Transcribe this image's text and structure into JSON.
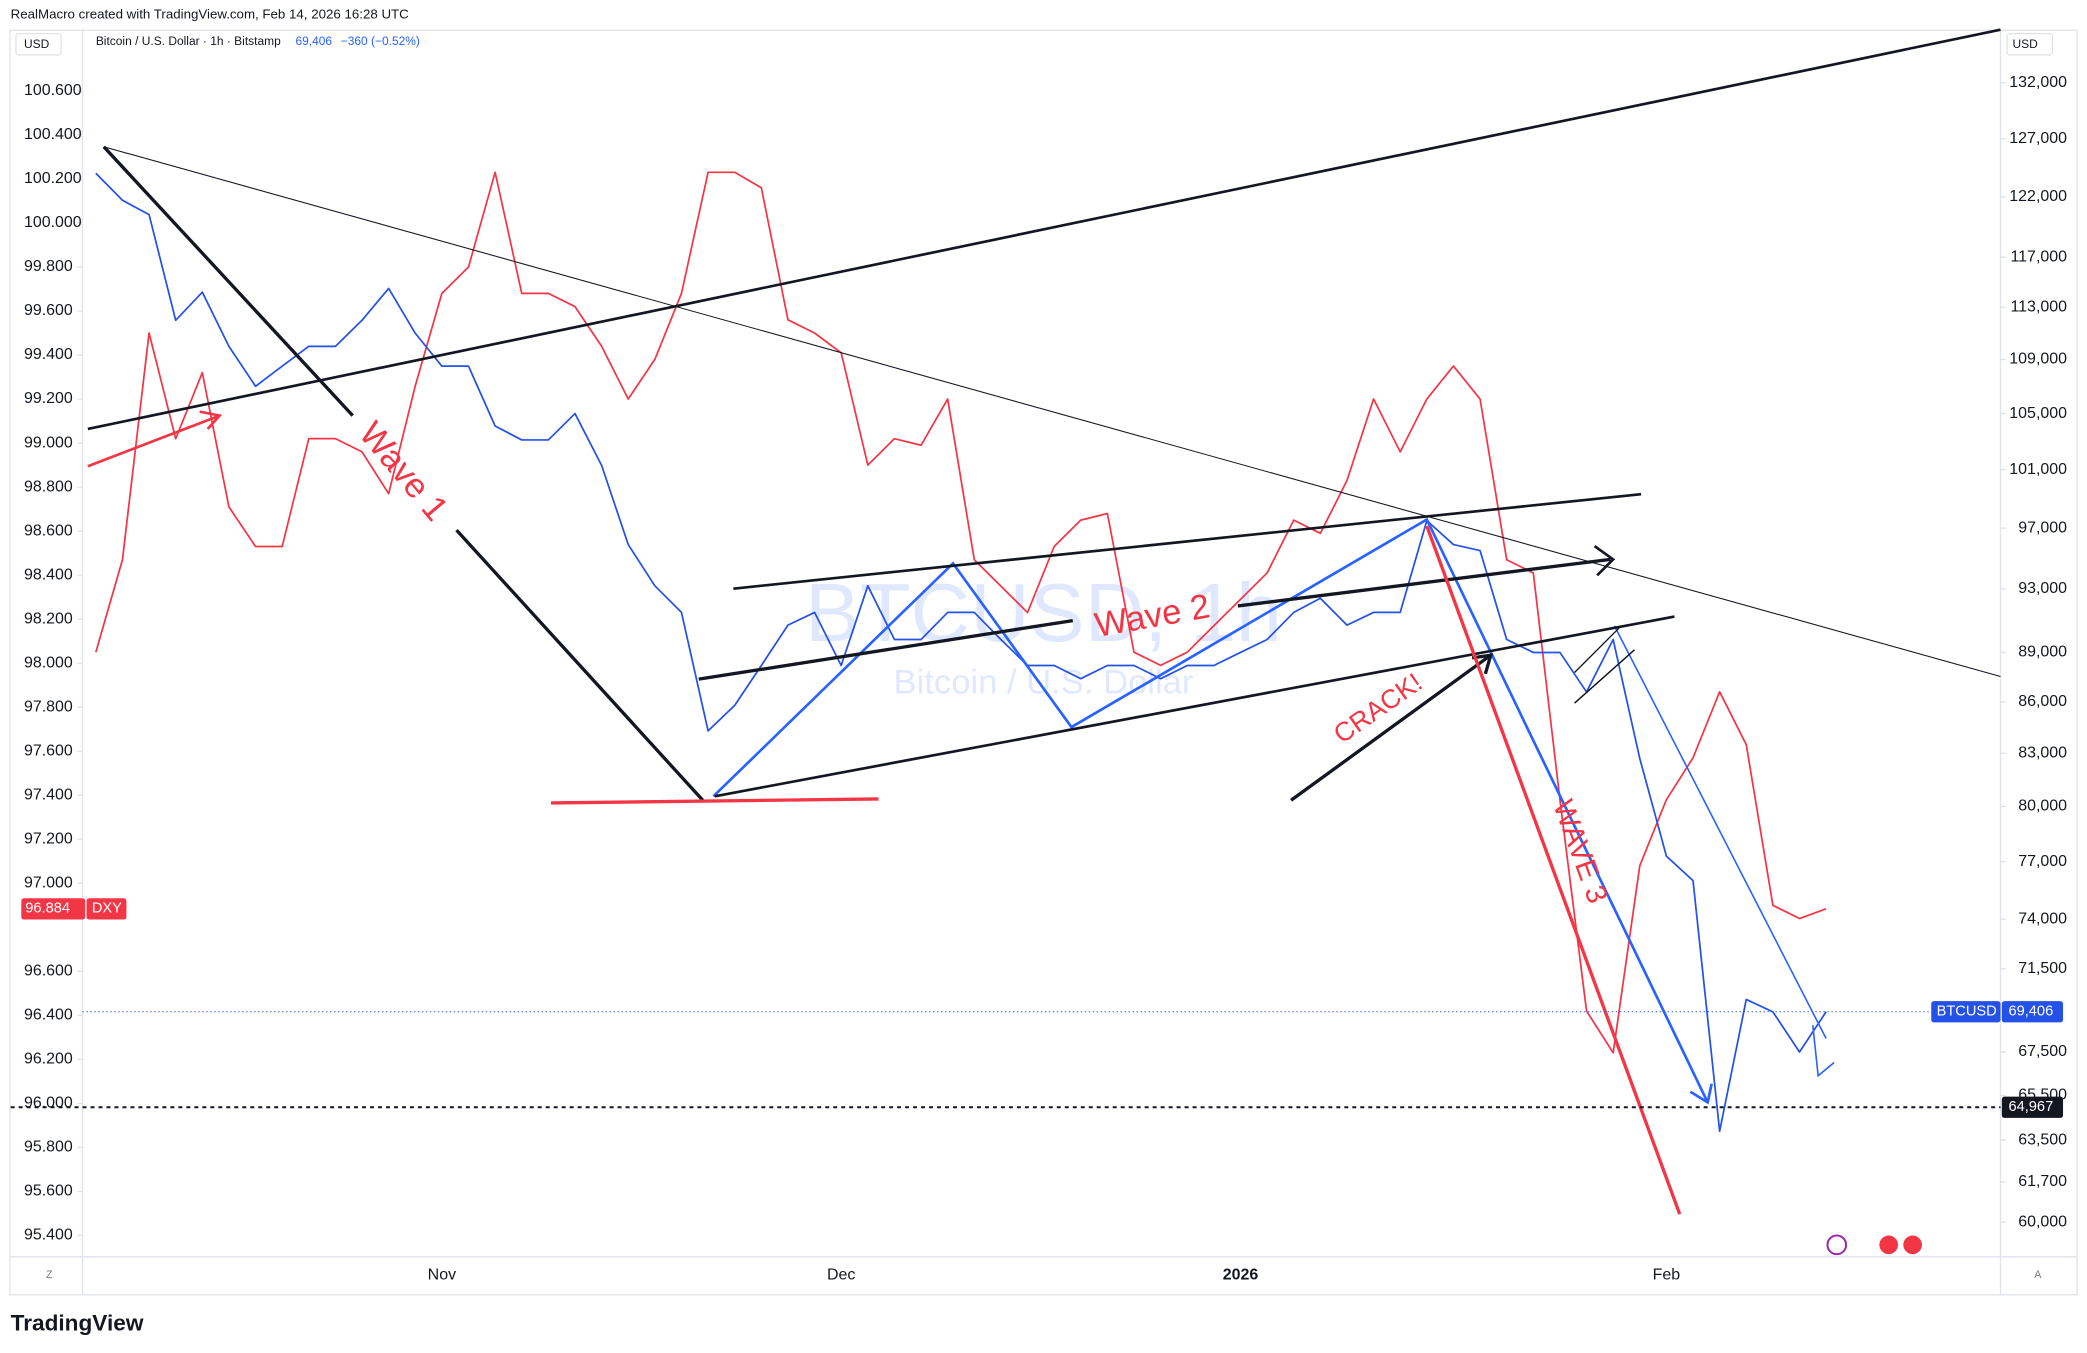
{
  "chart_data": {
    "type": "line",
    "credit": "RealMacro created with TradingView.com, Feb 14, 2026 16:28 UTC",
    "title": "Bitcoin / U.S. Dollar · 1h · Bitstamp",
    "last_price": "69,406",
    "change": "−360 (−0.52%)",
    "left_unit": "USD",
    "right_unit": "USD",
    "watermark": "BTCUSD, 1h",
    "watermark_subtitle": "Bitcoin / U.S. Dollar",
    "footer": "TradingView",
    "categories": [
      null,
      null,
      null,
      null,
      null,
      null,
      null,
      null,
      null,
      null,
      null,
      null,
      null,
      "Nov",
      null,
      null,
      null,
      null,
      null,
      null,
      null,
      null,
      null,
      null,
      null,
      null,
      null,
      null,
      "Dec",
      null,
      null,
      null,
      null,
      null,
      null,
      null,
      null,
      null,
      null,
      null,
      null,
      null,
      null,
      "2026",
      null,
      null,
      null,
      null,
      null,
      null,
      null,
      null,
      null,
      null,
      null,
      null,
      null,
      null,
      null,
      "Feb",
      null,
      null,
      null,
      null,
      null,
      null
    ],
    "ylim": [
      95.4,
      100.6
    ],
    "yticks": [
      {
        "value": 100.6,
        "label": "100.600"
      },
      {
        "value": 100.4,
        "label": "100.400"
      },
      {
        "value": 100.2,
        "label": "100.200"
      },
      {
        "value": 100,
        "label": "100.000"
      },
      {
        "value": 99.8,
        "label": "99.800"
      },
      {
        "value": 99.6,
        "label": "99.600"
      },
      {
        "value": 99.4,
        "label": "99.400"
      },
      {
        "value": 99.2,
        "label": "99.200"
      },
      {
        "value": 99,
        "label": "99.000"
      },
      {
        "value": 98.8,
        "label": "98.800"
      },
      {
        "value": 98.6,
        "label": "98.600"
      },
      {
        "value": 98.4,
        "label": "98.400"
      },
      {
        "value": 98.2,
        "label": "98.200"
      },
      {
        "value": 98,
        "label": "98.000"
      },
      {
        "value": 97.8,
        "label": "97.800"
      },
      {
        "value": 97.6,
        "label": "97.600"
      },
      {
        "value": 97.4,
        "label": "97.400"
      },
      {
        "value": 97.2,
        "label": "97.200"
      },
      {
        "value": 97,
        "label": "97.000"
      },
      {
        "value": 96.6,
        "label": "96.600"
      },
      {
        "value": 96.4,
        "label": "96.400"
      },
      {
        "value": 96.2,
        "label": "96.200"
      },
      {
        "value": 96,
        "label": "96.000"
      },
      {
        "value": 95.8,
        "label": "95.800"
      },
      {
        "value": 95.6,
        "label": "95.600"
      },
      {
        "value": 95.4,
        "label": "95.400"
      }
    ],
    "y2lim": [
      60000,
      132000
    ],
    "y2log": true,
    "y2ticks": [
      {
        "value": 132000,
        "label": "132,000"
      },
      {
        "value": 127000,
        "label": "127,000"
      },
      {
        "value": 122000,
        "label": "122,000"
      },
      {
        "value": 117000,
        "label": "117,000"
      },
      {
        "value": 113000,
        "label": "113,000"
      },
      {
        "value": 109000,
        "label": "109,000"
      },
      {
        "value": 105000,
        "label": "105,000"
      },
      {
        "value": 101000,
        "label": "101,000"
      },
      {
        "value": 97000,
        "label": "97,000"
      },
      {
        "value": 93000,
        "label": "93,000"
      },
      {
        "value": 89000,
        "label": "89,000"
      },
      {
        "value": 86000,
        "label": "86,000"
      },
      {
        "value": 83000,
        "label": "83,000"
      },
      {
        "value": 80000,
        "label": "80,000"
      },
      {
        "value": 77000,
        "label": "77,000"
      },
      {
        "value": 74000,
        "label": "74,000"
      },
      {
        "value": 71500,
        "label": "71,500"
      },
      {
        "value": 67500,
        "label": "67,500"
      },
      {
        "value": 65500,
        "label": "65,500"
      },
      {
        "value": 63500,
        "label": "63,500"
      },
      {
        "value": 61700,
        "label": "61,700"
      },
      {
        "value": 60000,
        "label": "60,000"
      }
    ],
    "hline": {
      "value": 64967,
      "label": "64,967",
      "axis": "y2"
    },
    "series": [
      {
        "name": "DXY",
        "color": "#f23645",
        "axis": "y",
        "price_label": "96.884",
        "values": [
          98.05,
          98.47,
          99.5,
          99.02,
          99.32,
          98.71,
          98.53,
          98.53,
          99.02,
          99.02,
          98.96,
          98.77,
          99.26,
          99.68,
          99.8,
          100.23,
          99.68,
          99.68,
          99.62,
          99.44,
          99.2,
          99.38,
          99.68,
          100.23,
          100.23,
          100.16,
          99.56,
          99.5,
          99.41,
          98.9,
          99.02,
          98.99,
          99.2,
          98.47,
          98.35,
          98.23,
          98.53,
          98.65,
          98.68,
          98.05,
          97.99,
          98.05,
          98.17,
          98.29,
          98.41,
          98.65,
          98.59,
          98.83,
          99.2,
          98.96,
          99.2,
          99.35,
          99.2,
          98.47,
          98.41,
          97.38,
          96.42,
          96.23,
          97.08,
          97.38,
          97.57,
          97.87,
          97.63,
          96.9,
          96.84,
          96.884
        ]
      },
      {
        "name": "BTCUSD",
        "color": "#2451e8",
        "axis": "y2",
        "price_label": "69,406",
        "values": [
          124000,
          121700,
          120500,
          112000,
          114200,
          110000,
          107000,
          108500,
          110000,
          110000,
          112000,
          114500,
          111000,
          108500,
          108500,
          104100,
          103100,
          103100,
          105000,
          101300,
          95900,
          93200,
          91500,
          84300,
          85800,
          88200,
          90700,
          91500,
          88200,
          93200,
          89800,
          89800,
          91500,
          91500,
          89800,
          88200,
          88200,
          87400,
          88200,
          88200,
          87400,
          88200,
          88200,
          89000,
          89800,
          91500,
          92400,
          90700,
          91500,
          91500,
          97500,
          95900,
          95500,
          89800,
          89000,
          89000,
          86600,
          89800,
          82700,
          77300,
          76000,
          63900,
          70000,
          69400,
          67500,
          69406
        ]
      }
    ],
    "annotations": [
      "Wave 1",
      "Wave 2",
      "CRACK!",
      "WAVE 3"
    ]
  }
}
